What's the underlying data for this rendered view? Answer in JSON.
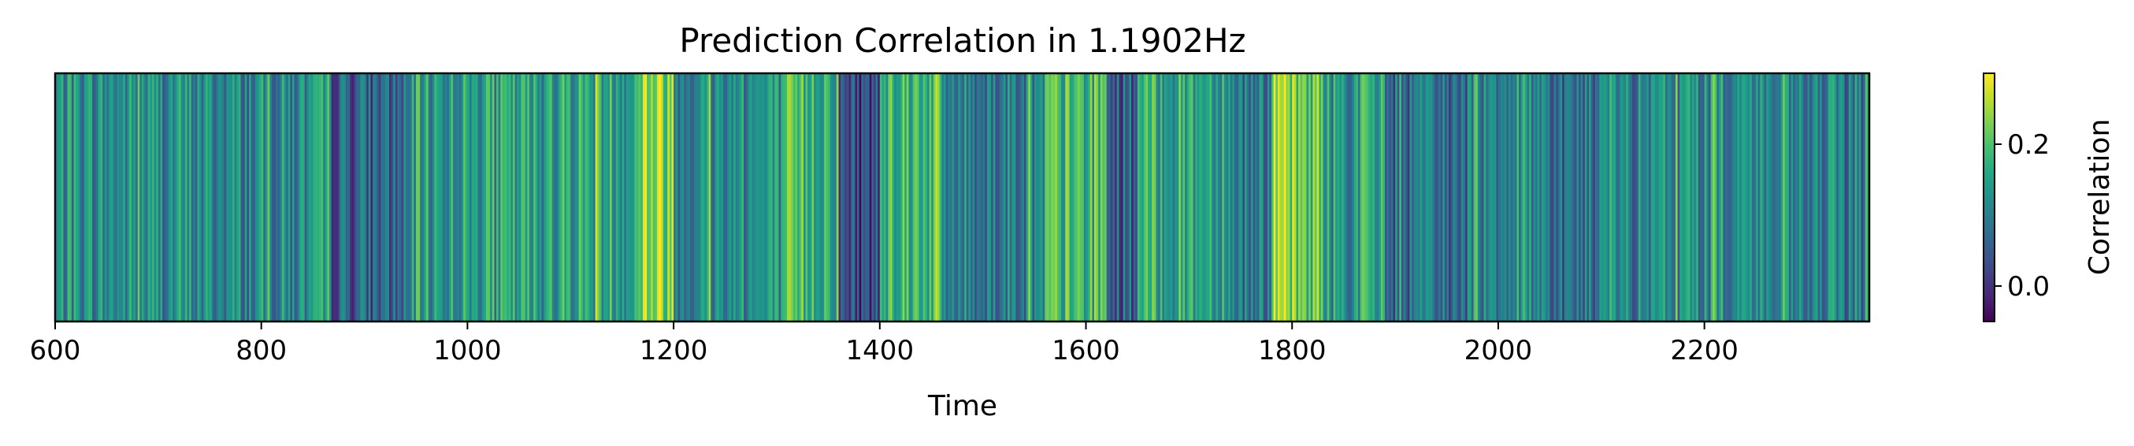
{
  "chart_data": {
    "type": "heatmap",
    "title": "Prediction Correlation in 1.1902Hz",
    "xlabel": "Time",
    "ylabel": "",
    "xlim": [
      600,
      2360
    ],
    "x_ticks": [
      "600",
      "800",
      "1000",
      "1200",
      "1400",
      "1600",
      "1800",
      "2000",
      "2200"
    ],
    "colorbar": {
      "label": "Correlation",
      "range": [
        -0.05,
        0.3
      ],
      "ticks": [
        "0.0",
        "0.2"
      ],
      "colormap": "viridis"
    },
    "region_means": [
      {
        "x": [
          600,
          740
        ],
        "value": 0.12
      },
      {
        "x": [
          740,
          860
        ],
        "value": 0.11
      },
      {
        "x": [
          860,
          945
        ],
        "value": 0.06
      },
      {
        "x": [
          945,
          1090
        ],
        "value": 0.14
      },
      {
        "x": [
          1090,
          1165
        ],
        "value": 0.16
      },
      {
        "x": [
          1165,
          1200
        ],
        "value": 0.24
      },
      {
        "x": [
          1200,
          1310
        ],
        "value": 0.12
      },
      {
        "x": [
          1310,
          1360
        ],
        "value": 0.18
      },
      {
        "x": [
          1360,
          1400
        ],
        "value": 0.03
      },
      {
        "x": [
          1400,
          1460
        ],
        "value": 0.19
      },
      {
        "x": [
          1460,
          1560
        ],
        "value": 0.1
      },
      {
        "x": [
          1560,
          1620
        ],
        "value": 0.18
      },
      {
        "x": [
          1620,
          1650
        ],
        "value": 0.06
      },
      {
        "x": [
          1650,
          1740
        ],
        "value": 0.16
      },
      {
        "x": [
          1740,
          1780
        ],
        "value": 0.1
      },
      {
        "x": [
          1780,
          1830
        ],
        "value": 0.21
      },
      {
        "x": [
          1830,
          1890
        ],
        "value": 0.14
      },
      {
        "x": [
          1890,
          1970
        ],
        "value": 0.07
      },
      {
        "x": [
          1970,
          2050
        ],
        "value": 0.12
      },
      {
        "x": [
          2050,
          2100
        ],
        "value": 0.08
      },
      {
        "x": [
          2100,
          2160
        ],
        "value": 0.1
      },
      {
        "x": [
          2160,
          2260
        ],
        "value": 0.12
      },
      {
        "x": [
          2260,
          2360
        ],
        "value": 0.09
      }
    ],
    "grid": false,
    "legend": "colorbar-right"
  }
}
